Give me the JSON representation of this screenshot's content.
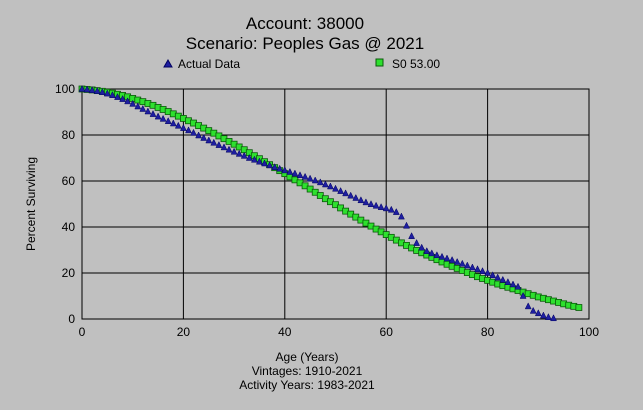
{
  "colors": {
    "background": "#c0c0c0",
    "grid": "#000000",
    "actual_fill": "#1e1ea0",
    "actual_stroke": "#000060",
    "fitted_fill": "#2ee02e",
    "fitted_stroke": "#0a5a0a"
  },
  "chart_data": {
    "type": "scatter",
    "title": "Account: 38000",
    "subtitle": "Scenario: Peoples Gas @ 2021",
    "xlabel": "Age (Years)",
    "ylabel": "Percent Surviving",
    "footer_lines": [
      "Vintages: 1910-2021",
      "Activity Years: 1983-2021"
    ],
    "xlim": [
      0,
      100
    ],
    "ylim": [
      0,
      100
    ],
    "x_ticks": [
      "0",
      "20",
      "40",
      "60",
      "80",
      "100"
    ],
    "y_ticks": [
      "0",
      "20",
      "40",
      "60",
      "80",
      "100"
    ],
    "grid": true,
    "legend_placement": "top",
    "series": [
      {
        "name": "Actual Data",
        "marker": "triangle-icon",
        "x": [
          0,
          1,
          2,
          3,
          4,
          5,
          6,
          7,
          8,
          9,
          10,
          11,
          12,
          13,
          14,
          15,
          16,
          17,
          18,
          19,
          20,
          21,
          22,
          23,
          24,
          25,
          26,
          27,
          28,
          29,
          30,
          31,
          32,
          33,
          34,
          35,
          36,
          37,
          38,
          39,
          40,
          41,
          42,
          43,
          44,
          45,
          46,
          47,
          48,
          49,
          50,
          51,
          52,
          53,
          54,
          55,
          56,
          57,
          58,
          59,
          60,
          61,
          62,
          63,
          64,
          65,
          66,
          67,
          68,
          69,
          70,
          71,
          72,
          73,
          74,
          75,
          76,
          77,
          78,
          79,
          80,
          81,
          82,
          83,
          84,
          85,
          86,
          87,
          88,
          89,
          90,
          91,
          92,
          93
        ],
        "y": [
          100,
          99.8,
          99.5,
          99.1,
          98.6,
          98,
          97.3,
          96.5,
          95.6,
          94.6,
          93.5,
          92.4,
          91.3,
          90.2,
          89.1,
          88,
          87,
          86,
          85,
          84,
          83,
          82,
          80.9,
          79.8,
          78.7,
          77.6,
          76.6,
          75.6,
          74.6,
          73.6,
          72.7,
          71.8,
          70.9,
          70,
          69.2,
          68.4,
          67.6,
          66.8,
          66,
          65.3,
          64.6,
          63.9,
          63.2,
          62.5,
          61.8,
          61,
          60.2,
          59.4,
          58.5,
          57.6,
          56.6,
          55.6,
          54.6,
          53.6,
          52.6,
          51.6,
          50.7,
          49.9,
          49.2,
          48.6,
          48.1,
          47.5,
          46.5,
          44.5,
          40.5,
          36,
          33,
          31,
          29.5,
          28.5,
          27.7,
          27,
          26.3,
          25.6,
          24.8,
          24,
          23.2,
          22.4,
          21.6,
          20.8,
          20,
          19,
          18,
          17,
          16,
          15,
          14,
          10,
          5.5,
          3.5,
          2.5,
          1.5,
          0.8,
          0.3
        ]
      },
      {
        "name": "S0 53.00",
        "marker": "square-icon",
        "x": [
          0,
          1,
          2,
          3,
          4,
          5,
          6,
          7,
          8,
          9,
          10,
          11,
          12,
          13,
          14,
          15,
          16,
          17,
          18,
          19,
          20,
          21,
          22,
          23,
          24,
          25,
          26,
          27,
          28,
          29,
          30,
          31,
          32,
          33,
          34,
          35,
          36,
          37,
          38,
          39,
          40,
          41,
          42,
          43,
          44,
          45,
          46,
          47,
          48,
          49,
          50,
          51,
          52,
          53,
          54,
          55,
          56,
          57,
          58,
          59,
          60,
          61,
          62,
          63,
          64,
          65,
          66,
          67,
          68,
          69,
          70,
          71,
          72,
          73,
          74,
          75,
          76,
          77,
          78,
          79,
          80,
          81,
          82,
          83,
          84,
          85,
          86,
          87,
          88,
          89,
          90,
          91,
          92,
          93,
          94,
          95,
          96,
          97,
          98
        ],
        "y": [
          100,
          99.8,
          99.6,
          99.3,
          99,
          98.6,
          98.2,
          97.7,
          97.2,
          96.6,
          95.9,
          95.2,
          94.5,
          93.7,
          92.9,
          92,
          91.1,
          90.2,
          89.2,
          88.2,
          87.2,
          86.2,
          85.2,
          84.1,
          83,
          81.9,
          80.8,
          79.6,
          78.4,
          77.2,
          76,
          74.8,
          73.6,
          72.3,
          71,
          69.7,
          68.4,
          67.1,
          65.8,
          64.5,
          63.2,
          61.8,
          60.5,
          59.2,
          57.9,
          56.5,
          55.1,
          53.7,
          52.3,
          51,
          49.7,
          48.3,
          46.9,
          45.6,
          44.3,
          43,
          41.7,
          40.4,
          39.1,
          37.9,
          36.7,
          35.5,
          34.3,
          33.1,
          32,
          30.9,
          29.8,
          28.8,
          27.8,
          26.8,
          25.8,
          24.8,
          23.8,
          22.9,
          22,
          21.1,
          20.2,
          19.3,
          18.4,
          17.6,
          16.8,
          16,
          15.2,
          14.5,
          13.8,
          13.1,
          12.4,
          11.7,
          11,
          10.3,
          9.6,
          9,
          8.4,
          7.8,
          7.2,
          6.6,
          6,
          5.5,
          5
        ]
      }
    ]
  }
}
